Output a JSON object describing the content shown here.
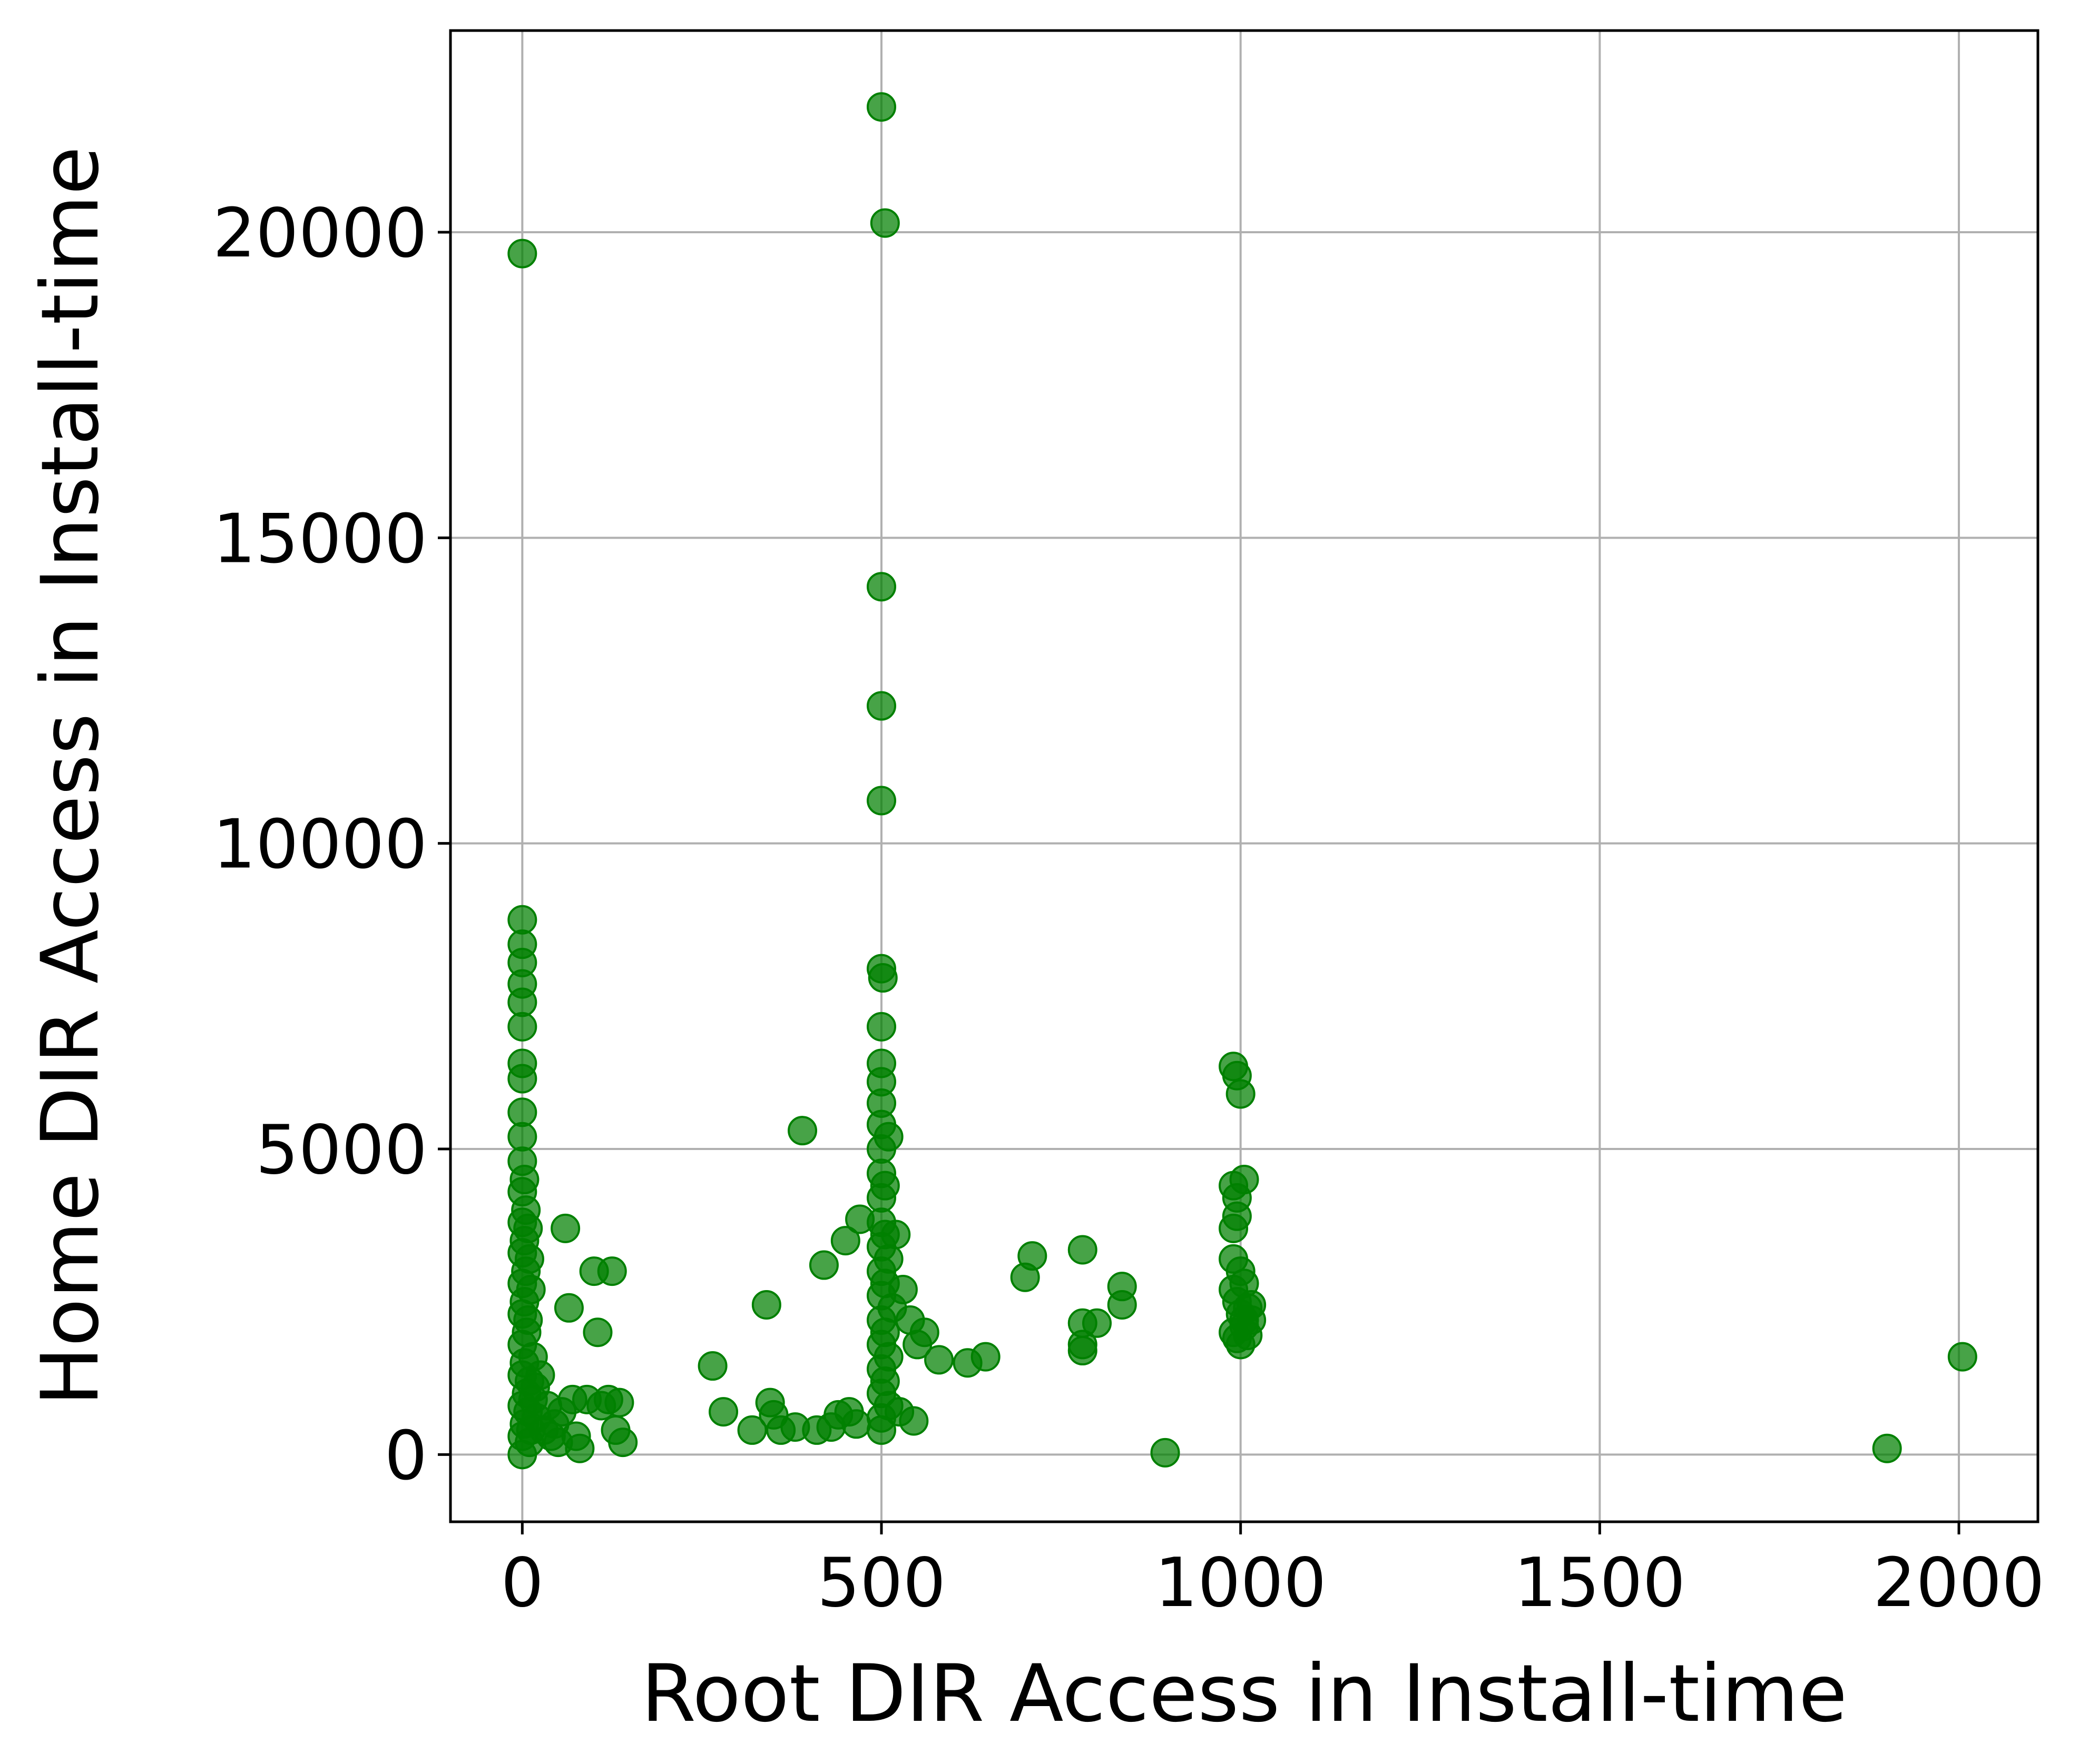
{
  "chart_data": {
    "type": "scatter",
    "xlabel": "Root DIR Access in Install-time",
    "ylabel": "Home DIR Access in Install-time",
    "xlim": [
      -100,
      2110
    ],
    "ylim": [
      -1100,
      23300
    ],
    "xticks": [
      0,
      500,
      1000,
      1500,
      2000
    ],
    "yticks": [
      0,
      5000,
      10000,
      15000,
      20000
    ],
    "grid": true,
    "legend": "none",
    "marker_color": "#008000",
    "points": [
      [
        0,
        19650
      ],
      [
        0,
        8750
      ],
      [
        0,
        8350
      ],
      [
        0,
        8050
      ],
      [
        0,
        7700
      ],
      [
        0,
        7400
      ],
      [
        0,
        7000
      ],
      [
        0,
        6400
      ],
      [
        0,
        6150
      ],
      [
        0,
        5600
      ],
      [
        0,
        5200
      ],
      [
        0,
        4800
      ],
      [
        0,
        4300
      ],
      [
        0,
        3800
      ],
      [
        0,
        3300
      ],
      [
        0,
        2800
      ],
      [
        0,
        2300
      ],
      [
        0,
        1800
      ],
      [
        0,
        1300
      ],
      [
        0,
        800
      ],
      [
        0,
        300
      ],
      [
        0,
        0
      ],
      [
        3,
        4500
      ],
      [
        3,
        3500
      ],
      [
        3,
        2500
      ],
      [
        3,
        1500
      ],
      [
        3,
        500
      ],
      [
        5,
        4000
      ],
      [
        5,
        3000
      ],
      [
        6,
        2000
      ],
      [
        6,
        1000
      ],
      [
        8,
        3700
      ],
      [
        8,
        2200
      ],
      [
        8,
        700
      ],
      [
        10,
        3200
      ],
      [
        10,
        1200
      ],
      [
        10,
        200
      ],
      [
        12,
        2700
      ],
      [
        12,
        400
      ],
      [
        15,
        1600
      ],
      [
        15,
        900
      ],
      [
        18,
        1100
      ],
      [
        20,
        600
      ],
      [
        25,
        1300
      ],
      [
        30,
        400
      ],
      [
        35,
        800
      ],
      [
        40,
        300
      ],
      [
        45,
        500
      ],
      [
        50,
        200
      ],
      [
        55,
        700
      ],
      [
        60,
        3700
      ],
      [
        65,
        2400
      ],
      [
        70,
        900
      ],
      [
        75,
        300
      ],
      [
        80,
        100
      ],
      [
        90,
        900
      ],
      [
        100,
        3000
      ],
      [
        105,
        2000
      ],
      [
        110,
        800
      ],
      [
        120,
        900
      ],
      [
        125,
        3000
      ],
      [
        130,
        400
      ],
      [
        135,
        850
      ],
      [
        140,
        200
      ],
      [
        265,
        1450
      ],
      [
        280,
        700
      ],
      [
        320,
        400
      ],
      [
        340,
        2450
      ],
      [
        345,
        850
      ],
      [
        350,
        650
      ],
      [
        360,
        400
      ],
      [
        380,
        450
      ],
      [
        390,
        5300
      ],
      [
        410,
        400
      ],
      [
        420,
        3100
      ],
      [
        430,
        450
      ],
      [
        440,
        650
      ],
      [
        450,
        3500
      ],
      [
        455,
        700
      ],
      [
        465,
        500
      ],
      [
        470,
        3850
      ],
      [
        500,
        22050
      ],
      [
        505,
        20150
      ],
      [
        500,
        14200
      ],
      [
        500,
        12250
      ],
      [
        500,
        10700
      ],
      [
        500,
        7950
      ],
      [
        502,
        7800
      ],
      [
        500,
        7000
      ],
      [
        500,
        6400
      ],
      [
        500,
        6100
      ],
      [
        500,
        5750
      ],
      [
        500,
        5400
      ],
      [
        500,
        5000
      ],
      [
        500,
        4600
      ],
      [
        500,
        4200
      ],
      [
        500,
        3800
      ],
      [
        500,
        3400
      ],
      [
        500,
        3000
      ],
      [
        500,
        2600
      ],
      [
        500,
        2200
      ],
      [
        500,
        1800
      ],
      [
        500,
        1400
      ],
      [
        500,
        1000
      ],
      [
        500,
        600
      ],
      [
        500,
        400
      ],
      [
        505,
        4400
      ],
      [
        505,
        3600
      ],
      [
        505,
        2800
      ],
      [
        505,
        2000
      ],
      [
        505,
        1200
      ],
      [
        510,
        5200
      ],
      [
        510,
        3200
      ],
      [
        510,
        1600
      ],
      [
        510,
        800
      ],
      [
        515,
        2400
      ],
      [
        520,
        3600
      ],
      [
        525,
        700
      ],
      [
        530,
        2700
      ],
      [
        540,
        2200
      ],
      [
        545,
        550
      ],
      [
        550,
        1800
      ],
      [
        560,
        2000
      ],
      [
        580,
        1550
      ],
      [
        620,
        1500
      ],
      [
        645,
        1600
      ],
      [
        700,
        2900
      ],
      [
        710,
        3250
      ],
      [
        780,
        3350
      ],
      [
        780,
        2150
      ],
      [
        780,
        1800
      ],
      [
        780,
        1700
      ],
      [
        800,
        2150
      ],
      [
        835,
        2750
      ],
      [
        835,
        2450
      ],
      [
        895,
        30
      ],
      [
        990,
        6350
      ],
      [
        995,
        6200
      ],
      [
        1000,
        5900
      ],
      [
        990,
        4400
      ],
      [
        995,
        4200
      ],
      [
        1005,
        4500
      ],
      [
        990,
        3700
      ],
      [
        995,
        3900
      ],
      [
        990,
        3200
      ],
      [
        1000,
        3000
      ],
      [
        1005,
        2800
      ],
      [
        990,
        2700
      ],
      [
        995,
        2500
      ],
      [
        1000,
        2300
      ],
      [
        1005,
        2100
      ],
      [
        1010,
        2400
      ],
      [
        990,
        2000
      ],
      [
        995,
        1900
      ],
      [
        1000,
        1800
      ],
      [
        1005,
        2200
      ],
      [
        1015,
        2450
      ],
      [
        1015,
        2200
      ],
      [
        1010,
        1950
      ],
      [
        1900,
        100
      ],
      [
        2005,
        1600
      ]
    ]
  }
}
